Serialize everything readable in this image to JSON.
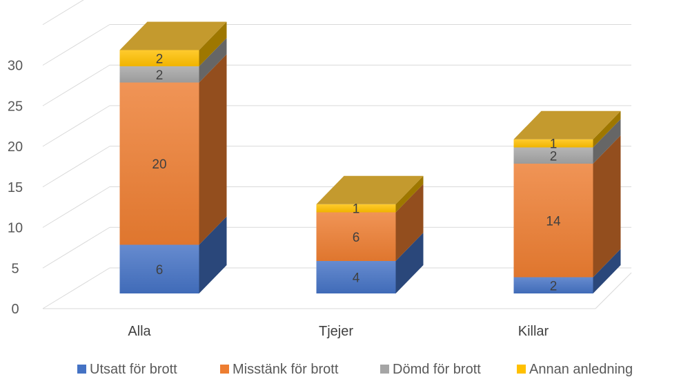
{
  "chart_data": {
    "type": "bar",
    "stacked": true,
    "three_d": true,
    "categories": [
      "Alla",
      "Tjejer",
      "Killar"
    ],
    "series": [
      {
        "name": "Utsatt för brott",
        "values": [
          6,
          4,
          2
        ],
        "color": "#4472c4"
      },
      {
        "name": "Misstänk för brott",
        "values": [
          20,
          6,
          14
        ],
        "color": "#ed7d31"
      },
      {
        "name": "Dömd för brott",
        "values": [
          2,
          0,
          2
        ],
        "color": "#a5a5a5"
      },
      {
        "name": "Annan anledning",
        "values": [
          2,
          1,
          1
        ],
        "color": "#ffc000"
      }
    ],
    "ylim": [
      0,
      30
    ],
    "yticks": [
      0,
      5,
      10,
      15,
      20,
      25,
      30
    ],
    "grid": true,
    "legend_position": "bottom"
  }
}
